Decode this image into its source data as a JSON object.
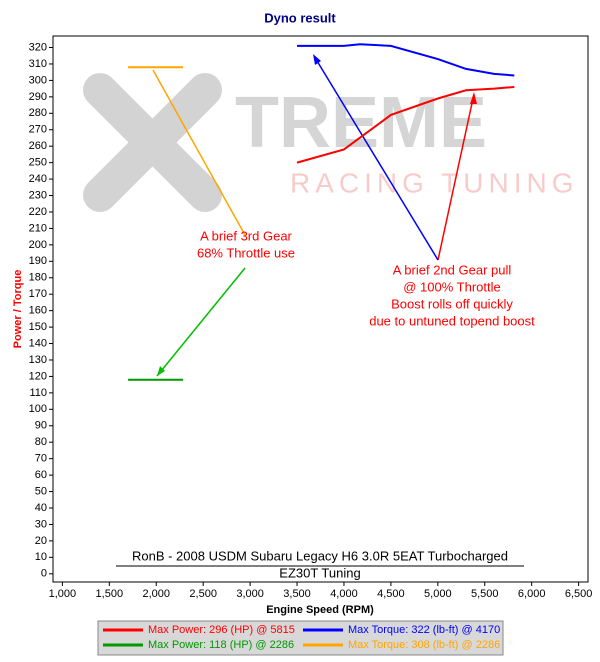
{
  "chart_data": {
    "type": "line",
    "title": "Dyno result",
    "subtitle": [
      "RonB - 2008 USDM Subaru Legacy H6 3.0R 5EAT Turbocharged",
      "EZ30T Tuning"
    ],
    "x_label": "Engine Speed (RPM)",
    "y_label": "Power / Torque",
    "watermark": [
      "TREME",
      "RACING TUNING"
    ],
    "annotations": [
      [
        "A brief 3rd Gear",
        "68% Throttle use"
      ],
      [
        "A brief 2nd Gear pull",
        "@ 100% Throttle",
        "Boost rolls off quickly",
        "due to untuned topend boost"
      ]
    ],
    "xlim": [
      900,
      6600
    ],
    "ylim": [
      -5,
      327
    ],
    "xticks": [
      {
        "value": 1000,
        "label": "1,000"
      },
      {
        "value": 1500,
        "label": "1,500"
      },
      {
        "value": 2000,
        "label": "2,000"
      },
      {
        "value": 2500,
        "label": "2,500"
      },
      {
        "value": 3000,
        "label": "3,000"
      },
      {
        "value": 3500,
        "label": "3,500"
      },
      {
        "value": 4000,
        "label": "4,000"
      },
      {
        "value": 4500,
        "label": "4,500"
      },
      {
        "value": 5000,
        "label": "5,000"
      },
      {
        "value": 5500,
        "label": "5,500"
      },
      {
        "value": 6000,
        "label": "6,000"
      },
      {
        "value": 6500,
        "label": "6,500"
      }
    ],
    "yticks": [
      0,
      10,
      20,
      30,
      40,
      50,
      60,
      70,
      80,
      90,
      100,
      110,
      120,
      130,
      140,
      150,
      160,
      170,
      180,
      190,
      200,
      210,
      220,
      230,
      240,
      250,
      260,
      270,
      280,
      290,
      300,
      310,
      320
    ],
    "series": [
      {
        "name": "Max Power: 296 (HP) @ 5815",
        "color": "#ff0000",
        "x": [
          3500,
          4000,
          4500,
          5000,
          5300,
          5600,
          5815
        ],
        "values": [
          250,
          258,
          279,
          289,
          294,
          295,
          296
        ]
      },
      {
        "name": "Max Torque: 322 (lb-ft) @ 4170",
        "color": "#0000ff",
        "x": [
          3500,
          4000,
          4170,
          4500,
          5000,
          5300,
          5600,
          5815
        ],
        "values": [
          321,
          321,
          322,
          321,
          313,
          307,
          304,
          303
        ]
      },
      {
        "name": "Max Power: 118 (HP) @ 2286",
        "color": "#009900",
        "x": [
          1700,
          2286
        ],
        "values": [
          118,
          118
        ]
      },
      {
        "name": "Max Torque: 308 (lb-ft) @ 2286",
        "color": "#ffa500",
        "x": [
          1700,
          2286
        ],
        "values": [
          308,
          308
        ]
      }
    ]
  }
}
